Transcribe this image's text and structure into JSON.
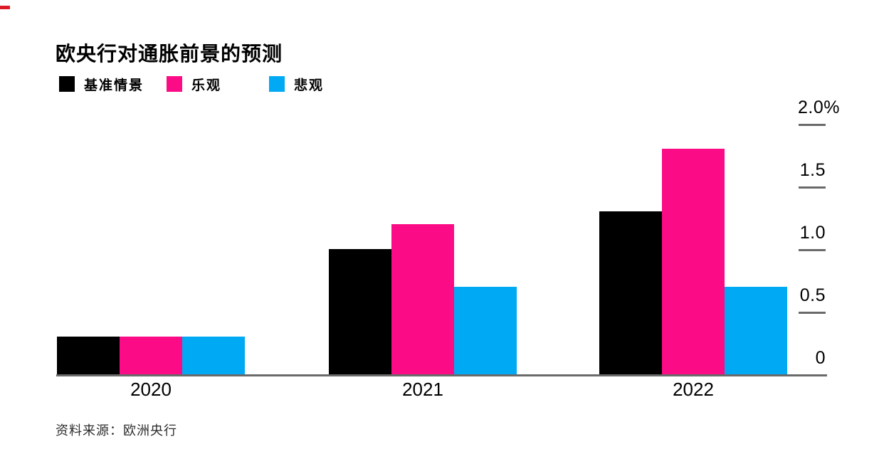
{
  "chart_data": {
    "type": "bar",
    "title": "欧央行对通胀前景的预测",
    "categories": [
      "2020",
      "2021",
      "2022"
    ],
    "series": [
      {
        "name": "基准情景",
        "color": "#000000",
        "values": [
          0.3,
          1.0,
          1.3
        ]
      },
      {
        "name": "乐观",
        "color": "#fb0b85",
        "values": [
          0.3,
          1.2,
          1.8
        ]
      },
      {
        "name": "悲观",
        "color": "#00a9f4",
        "values": [
          0.3,
          0.7,
          0.7
        ]
      }
    ],
    "xlabel": "",
    "ylabel": "",
    "unit": "%",
    "ylim": [
      0,
      2.0
    ],
    "y_ticks": [
      {
        "value": 2.0,
        "label": "2.0%"
      },
      {
        "value": 1.5,
        "label": "1.5"
      },
      {
        "value": 1.0,
        "label": "1.0"
      },
      {
        "value": 0.5,
        "label": "0.5"
      },
      {
        "value": 0,
        "label": "0"
      }
    ],
    "grid": false,
    "legend_position": "top-left",
    "axis_color": "#6a6a6a",
    "accent_color": "#dc1b26",
    "source": "资料来源：欧洲央行"
  }
}
